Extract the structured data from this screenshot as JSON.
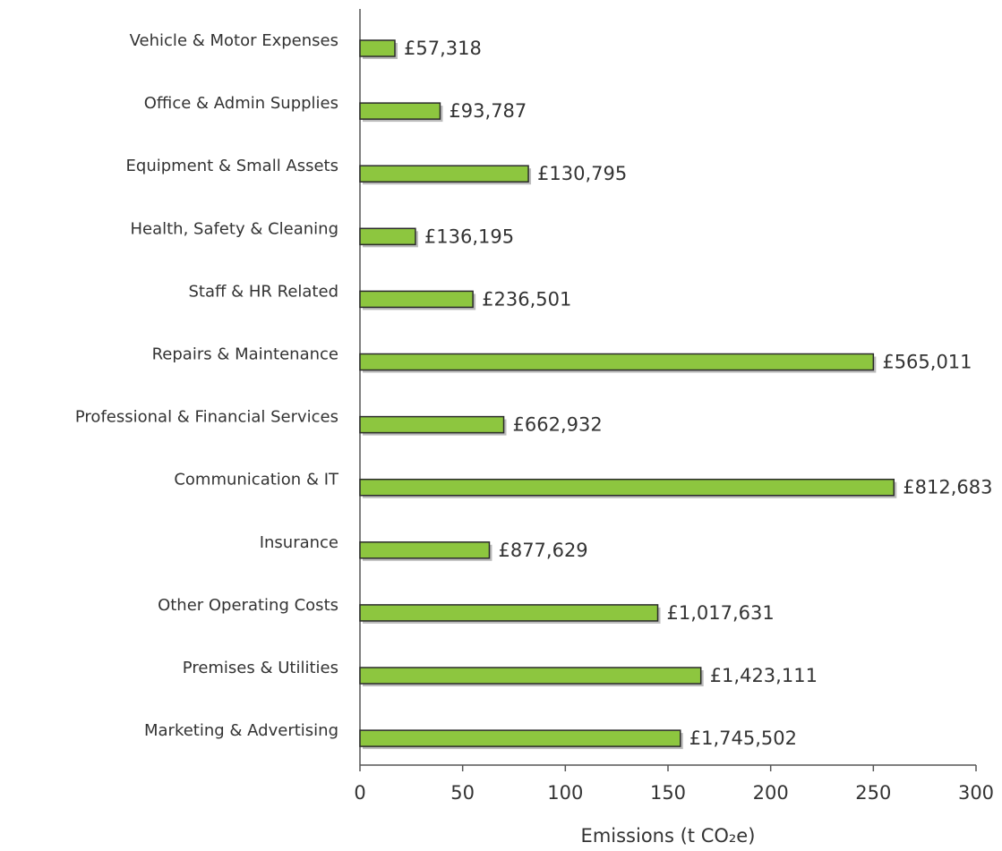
{
  "chart_data": {
    "type": "barh",
    "categories": [
      "Vehicle & Motor Expenses",
      "Office & Admin Supplies",
      "Equipment & Small Assets",
      "Health, Safety & Cleaning",
      "Staff & HR Related",
      "Repairs & Maintenance",
      "Professional & Financial Services",
      "Communication & IT",
      "Insurance",
      "Other Operating Costs",
      "Premises & Utilities",
      "Marketing & Advertising"
    ],
    "values": [
      17,
      39,
      82,
      27,
      55,
      250,
      70,
      260,
      63,
      145,
      166,
      156
    ],
    "spend_labels": [
      "£57,318",
      "£93,787",
      "£130,795",
      "£136,195",
      "£236,501",
      "£565,011",
      "£662,932",
      "£812,683",
      "£877,629",
      "£1,017,631",
      "£1,423,111",
      "£1,745,502"
    ],
    "color": "#8dc63f",
    "xlabel": "Emissions (t CO₂e)",
    "xlim": [
      0,
      300
    ],
    "xticks": [
      0,
      50,
      100,
      150,
      200,
      250,
      300
    ],
    "grid": false
  }
}
